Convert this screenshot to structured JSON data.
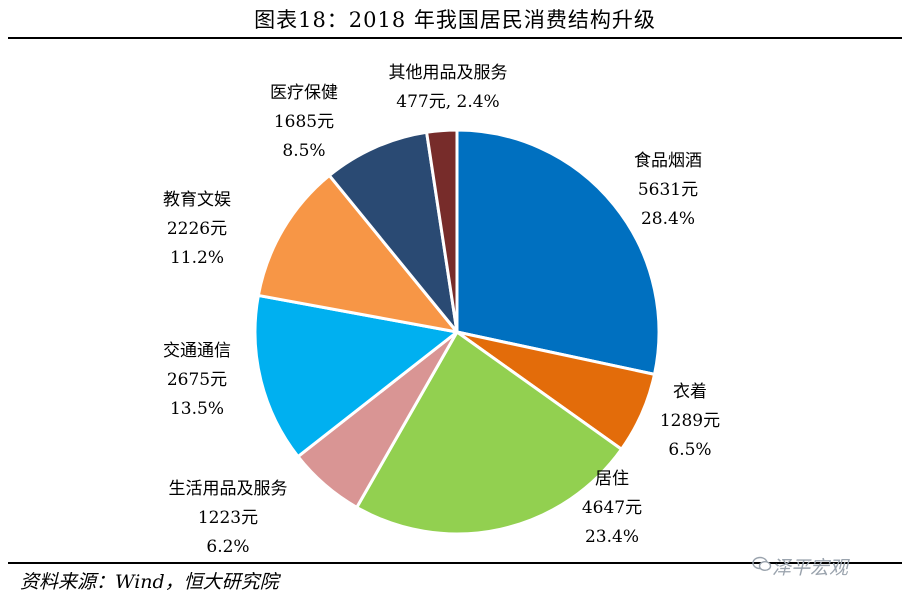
{
  "header": {
    "title": "图表18：2018 年我国居民消费结构升级"
  },
  "footer": {
    "source": "资料来源：Wind，恒大研究院",
    "watermark": "泽平宏观"
  },
  "chart_data": {
    "type": "pie",
    "title": "图表18：2018 年我国居民消费结构升级",
    "start_angle": "12 o'clock",
    "direction": "clockwise",
    "slices": [
      {
        "label": "食品烟酒",
        "value": 5631,
        "value_text": "5631元",
        "percent": 28.4,
        "percent_text": "28.4%",
        "color": "#0070C0"
      },
      {
        "label": "衣着",
        "value": 1289,
        "value_text": "1289元",
        "percent": 6.5,
        "percent_text": "6.5%",
        "color": "#E36C0A"
      },
      {
        "label": "居住",
        "value": 4647,
        "value_text": "4647元",
        "percent": 23.4,
        "percent_text": "23.4%",
        "color": "#92D050"
      },
      {
        "label": "生活用品及服务",
        "value": 1223,
        "value_text": "1223元",
        "percent": 6.2,
        "percent_text": "6.2%",
        "color": "#D99594"
      },
      {
        "label": "交通通信",
        "value": 2675,
        "value_text": "2675元",
        "percent": 13.5,
        "percent_text": "13.5%",
        "color": "#00B0F0"
      },
      {
        "label": "教育文娱",
        "value": 2226,
        "value_text": "2226元",
        "percent": 11.2,
        "percent_text": "11.2%",
        "color": "#F79646"
      },
      {
        "label": "医疗保健",
        "value": 1685,
        "value_text": "1685元",
        "percent": 8.5,
        "percent_text": "8.5%",
        "color": "#2A4A73"
      },
      {
        "label": "其他用品及服务",
        "value": 477,
        "value_text": "477元, 2.4%",
        "percent": 2.4,
        "percent_text": "",
        "color": "#772C2A"
      }
    ]
  }
}
